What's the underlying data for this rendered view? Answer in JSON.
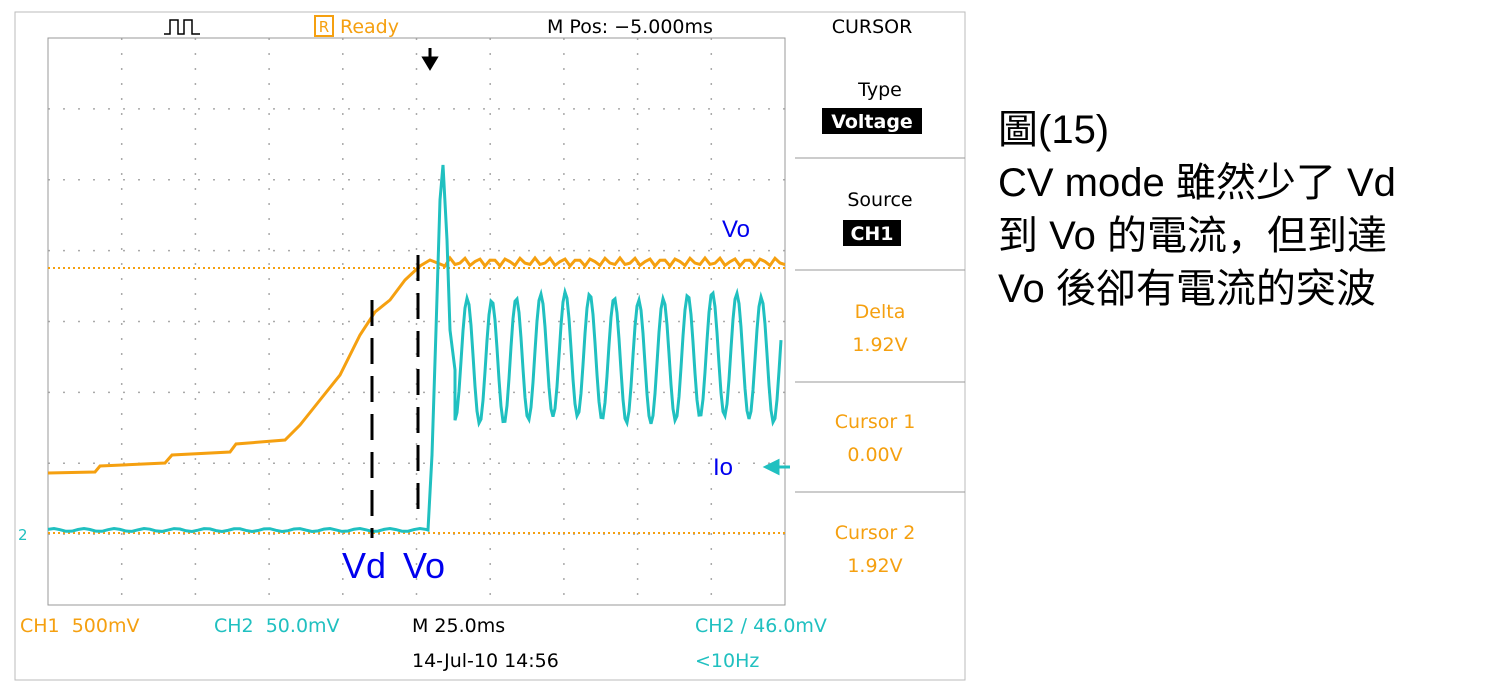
{
  "scope": {
    "status": {
      "icon": "R",
      "state": "Ready",
      "position": "M Pos: −5.000ms",
      "menu_title": "CURSOR"
    },
    "menu": [
      {
        "label": "Type",
        "value": "Voltage"
      },
      {
        "label": "Source",
        "value": "CH1"
      },
      {
        "label": "Delta",
        "value": "1.92V"
      },
      {
        "label": "Cursor 1",
        "value": "0.00V"
      },
      {
        "label": "Cursor 2",
        "value": "1.92V"
      }
    ],
    "footer": {
      "ch1": "CH1  500mV",
      "ch2": "CH2  50.0mV",
      "timebase": "M 25.0ms",
      "trigger": "CH2 ∕ 46.0mV",
      "date": "14-Jul-10 14:56",
      "frequency": "<10Hz"
    },
    "marker": "2",
    "annotations": {
      "vo_trace": "Vo",
      "io_trace": "Io",
      "vd_point": "Vd",
      "vo_point": "Vo"
    }
  },
  "caption": {
    "lines": [
      "圖(15)",
      "CV mode 雖然少了 Vd",
      "到 Vo 的電流，但到達",
      "Vo 後卻有電流的突波"
    ]
  }
}
